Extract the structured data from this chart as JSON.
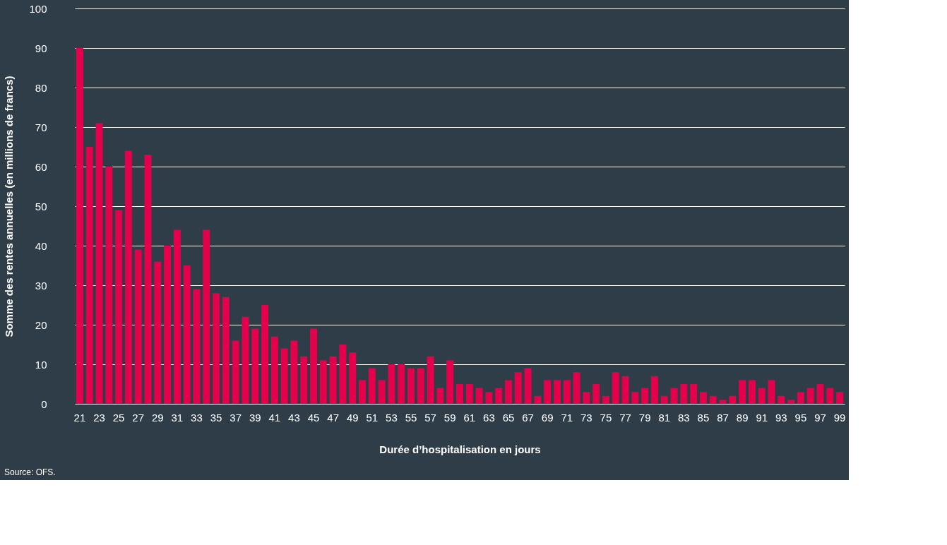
{
  "chart_data": {
    "type": "bar",
    "xlabel": "Durée d’hospitalisation en jours",
    "ylabel": "Somme des rentes annuelles (en millions de francs)",
    "categories": [
      "21",
      null,
      "23",
      null,
      "25",
      null,
      "27",
      null,
      "29",
      null,
      "31",
      null,
      "33",
      null,
      "35",
      null,
      "37",
      null,
      "39",
      null,
      "41",
      null,
      "43",
      null,
      "45",
      null,
      "47",
      null,
      "49",
      null,
      "51",
      null,
      "53",
      null,
      "55",
      null,
      "57",
      null,
      "59",
      null,
      "61",
      null,
      "63",
      null,
      "65",
      null,
      "67",
      null,
      "69",
      null,
      "71",
      null,
      "73",
      null,
      "75",
      null,
      "77",
      null,
      "79",
      null,
      "81",
      null,
      "83",
      null,
      "85",
      null,
      "87",
      null,
      "89",
      null,
      "91",
      null,
      "93",
      null,
      "95",
      null,
      "97",
      null,
      "99"
    ],
    "values": [
      90,
      65,
      71,
      60,
      49,
      64,
      39,
      63,
      36,
      40,
      44,
      35,
      29,
      44,
      28,
      27,
      16,
      22,
      19,
      25,
      17,
      14,
      16,
      12,
      19,
      11,
      12,
      15,
      13,
      6,
      9,
      6,
      10,
      10,
      9,
      9,
      12,
      4,
      11,
      5,
      5,
      4,
      3,
      4,
      6,
      8,
      9,
      2,
      6,
      6,
      6,
      8,
      3,
      5,
      2,
      8,
      7,
      3,
      4,
      7,
      2,
      4,
      5,
      5,
      3,
      2,
      1,
      2,
      6,
      6,
      4,
      6,
      2,
      1,
      3,
      4,
      5,
      4,
      3
    ],
    "color": "#e4004b",
    "ylim": [
      0,
      100
    ],
    "yticks": [
      0,
      10,
      20,
      30,
      40,
      50,
      60,
      70,
      80,
      90,
      100
    ],
    "grid": "y",
    "annotations": [
      "Source: OFS."
    ]
  }
}
